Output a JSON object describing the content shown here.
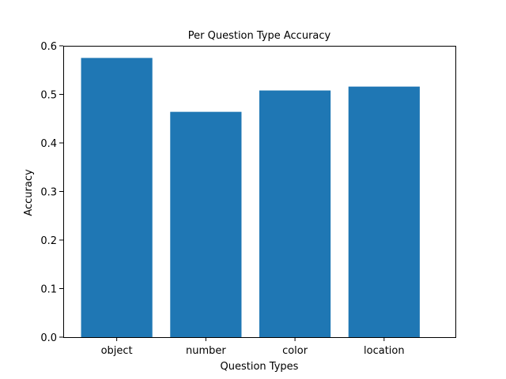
{
  "chart_data": {
    "type": "bar",
    "title": "Per Question Type Accuracy",
    "xlabel": "Question Types",
    "ylabel": "Accuracy",
    "categories": [
      "object",
      "number",
      "color",
      "location"
    ],
    "values": [
      0.575,
      0.464,
      0.508,
      0.516
    ],
    "ylim": [
      0,
      0.6
    ],
    "yticks": [
      "0.0",
      "0.1",
      "0.2",
      "0.3",
      "0.4",
      "0.5",
      "0.6"
    ],
    "bar_color": "#1f77b4",
    "grid": false,
    "legend": "none"
  }
}
